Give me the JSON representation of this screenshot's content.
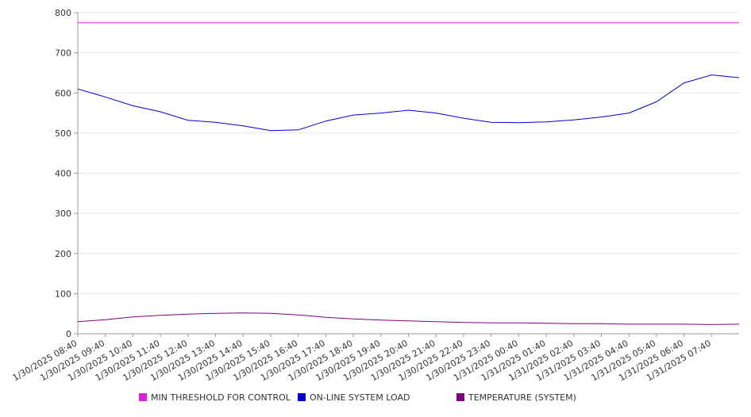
{
  "chart_data": {
    "type": "line",
    "title": "",
    "xlabel": "",
    "ylabel": "",
    "ylim": [
      0,
      800
    ],
    "yticks": [
      0,
      100,
      200,
      300,
      400,
      500,
      600,
      700,
      800
    ],
    "grid": true,
    "legend_position": "bottom",
    "x_tick_labels": [
      "1/30/2025 08:40",
      "1/30/2025 09:40",
      "1/30/2025 10:40",
      "1/30/2025 11:40",
      "1/30/2025 12:40",
      "1/30/2025 13:40",
      "1/30/2025 14:40",
      "1/30/2025 15:40",
      "1/30/2025 16:40",
      "1/30/2025 17:40",
      "1/30/2025 18:40",
      "1/30/2025 19:40",
      "1/30/2025 20:40",
      "1/30/2025 21:40",
      "1/30/2025 22:40",
      "1/30/2025 23:40",
      "1/31/2025 00:40",
      "1/31/2025 01:40",
      "1/31/2025 02:40",
      "1/31/2025 03:40",
      "1/31/2025 04:40",
      "1/31/2025 05:40",
      "1/31/2025 06:40",
      "1/31/2025 07:40"
    ],
    "x_range": [
      "1/30/2025 08:40",
      "1/31/2025 08:40"
    ],
    "series": [
      {
        "name": "MIN THRESHOLD FOR CONTROL",
        "color": "#e020e0",
        "values": [
          775,
          775,
          775,
          775,
          775,
          775,
          775,
          775,
          775,
          775,
          775,
          775,
          775,
          775,
          775,
          775,
          775,
          775,
          775,
          775,
          775,
          775,
          775,
          775,
          775
        ]
      },
      {
        "name": "ON-LINE SYSTEM LOAD",
        "color": "#0000dd",
        "values": [
          610,
          590,
          568,
          553,
          532,
          527,
          518,
          506,
          508,
          530,
          545,
          550,
          557,
          550,
          537,
          527,
          526,
          528,
          533,
          540,
          550,
          578,
          625,
          645,
          638
        ]
      },
      {
        "name": "TEMPERATURE (SYSTEM)",
        "color": "#800080",
        "values": [
          30,
          35,
          42,
          46,
          49,
          51,
          52,
          51,
          47,
          41,
          37,
          34,
          32,
          30,
          28,
          27,
          27,
          26,
          25,
          25,
          24,
          24,
          24,
          23,
          24
        ]
      }
    ]
  }
}
